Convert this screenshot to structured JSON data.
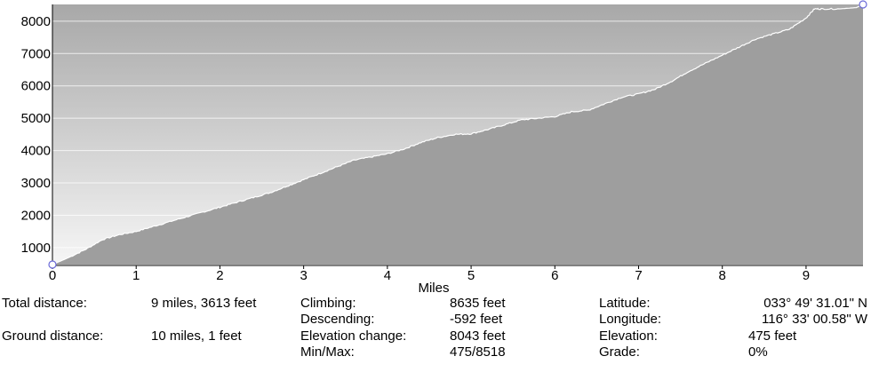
{
  "chart_data": {
    "type": "area",
    "xlabel": "Miles",
    "ylabel": "",
    "xlim": [
      0,
      9.68
    ],
    "ylim": [
      475,
      8518
    ],
    "x_ticks": [
      "0",
      "1",
      "2",
      "3",
      "4",
      "5",
      "6",
      "7",
      "8",
      "9"
    ],
    "y_ticks": [
      "1000",
      "2000",
      "3000",
      "4000",
      "5000",
      "6000",
      "7000",
      "8000"
    ],
    "x": [
      0,
      0.2,
      0.4,
      0.6,
      0.8,
      1.0,
      1.2,
      1.4,
      1.6,
      1.8,
      2.0,
      2.2,
      2.4,
      2.6,
      2.8,
      3.0,
      3.2,
      3.4,
      3.6,
      3.8,
      4.0,
      4.2,
      4.4,
      4.6,
      4.8,
      5.0,
      5.2,
      5.4,
      5.6,
      5.8,
      6.0,
      6.2,
      6.4,
      6.6,
      6.8,
      7.0,
      7.2,
      7.4,
      7.6,
      7.8,
      8.0,
      8.2,
      8.4,
      8.6,
      8.8,
      9.0,
      9.1,
      9.2,
      9.4,
      9.6,
      9.68
    ],
    "y": [
      475,
      700,
      950,
      1250,
      1400,
      1500,
      1650,
      1800,
      1950,
      2100,
      2250,
      2400,
      2550,
      2700,
      2900,
      3100,
      3300,
      3500,
      3700,
      3800,
      3900,
      4050,
      4250,
      4400,
      4500,
      4520,
      4650,
      4800,
      4950,
      5000,
      5050,
      5200,
      5250,
      5450,
      5650,
      5750,
      5900,
      6150,
      6450,
      6700,
      6950,
      7200,
      7450,
      7600,
      7750,
      8100,
      8380,
      8380,
      8380,
      8420,
      8518
    ],
    "series": [
      {
        "name": "",
        "color": "#9e9e9e"
      }
    ],
    "grid": true,
    "markers": {
      "start": "circle",
      "end": "circle"
    }
  },
  "stats": {
    "total_distance_label": "Total distance:",
    "total_distance_value": "9 miles, 3613 feet",
    "ground_distance_label": "Ground distance:",
    "ground_distance_value": "10 miles, 1 feet",
    "climbing_label": "Climbing:",
    "climbing_value": "8635 feet",
    "descending_label": "Descending:",
    "descending_value": "-592 feet",
    "elevation_change_label": "Elevation change:",
    "elevation_change_value": "8043 feet",
    "minmax_label": "Min/Max:",
    "minmax_value": "475/8518",
    "latitude_label": "Latitude:",
    "latitude_value": "033° 49' 31.01\" N",
    "longitude_label": "Longitude:",
    "longitude_value": "116° 33' 00.58\" W",
    "elevation_label": "Elevation:",
    "elevation_value": "475 feet",
    "grade_label": "Grade:",
    "grade_value": "0%"
  }
}
